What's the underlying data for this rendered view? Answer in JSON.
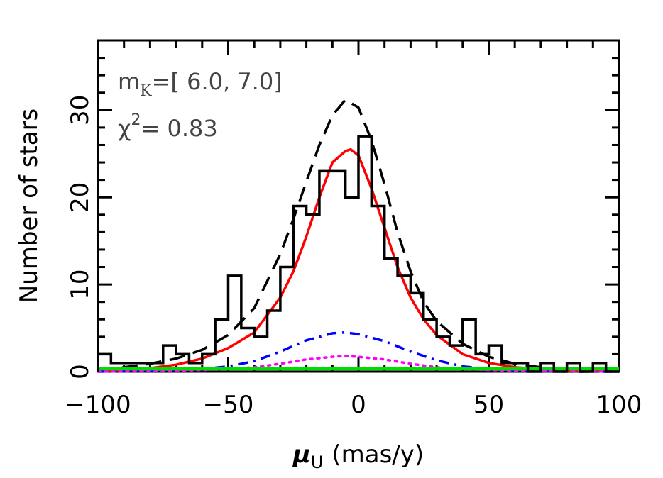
{
  "chart_data": {
    "type": "line",
    "xlabel": "μ",
    "xlabel_sub": "U",
    "xlabel_units": "(mas/y)",
    "ylabel": "Number of stars",
    "xlim": [
      -100,
      100
    ],
    "ylim": [
      0,
      38
    ],
    "x_ticks": [
      -100,
      -50,
      0,
      50,
      100
    ],
    "x_tick_labels": [
      "−100",
      "−50",
      "0",
      "50",
      "100"
    ],
    "y_ticks": [
      0,
      10,
      20,
      30
    ],
    "y_tick_labels": [
      "0",
      "10",
      "20",
      "30"
    ],
    "annotations": {
      "mag_prefix": "m",
      "mag_sub": "K",
      "mag_range": "=[ 6.0, 7.0]",
      "chi_prefix": "χ",
      "chi_sup": "2",
      "chi_value": "= 0.83"
    },
    "grid": false,
    "histogram": {
      "bin_width": 5,
      "edges": [
        -100,
        -95,
        -90,
        -85,
        -80,
        -75,
        -70,
        -65,
        -60,
        -55,
        -50,
        -45,
        -40,
        -35,
        -30,
        -25,
        -20,
        -15,
        -10,
        -5,
        0,
        5,
        10,
        15,
        20,
        25,
        30,
        35,
        40,
        45,
        50,
        55,
        60,
        65,
        70,
        75,
        80,
        85,
        90,
        95,
        100
      ],
      "counts": [
        2,
        1,
        1,
        1,
        1,
        3,
        2,
        1,
        2,
        6,
        11,
        5,
        4,
        7,
        12,
        19,
        18,
        23,
        23,
        20,
        27,
        19,
        13,
        11,
        9,
        6,
        4,
        3,
        6,
        2,
        3,
        1,
        1,
        0,
        1,
        0,
        1,
        0,
        1,
        0
      ]
    },
    "series": [
      {
        "style": "dashed",
        "color": "#000000",
        "x": [
          -100,
          -90,
          -80,
          -70,
          -60,
          -50,
          -40,
          -30,
          -25,
          -20,
          -15,
          -10,
          -5,
          0,
          5,
          10,
          15,
          20,
          25,
          30,
          40,
          50,
          60,
          70,
          80,
          90,
          100
        ],
        "y": [
          0.2,
          0.5,
          0.9,
          1.5,
          2.5,
          4.2,
          7.3,
          13.5,
          17.5,
          21.8,
          26.0,
          29.4,
          31.2,
          30.3,
          26.5,
          21.5,
          16.0,
          11.5,
          8.0,
          5.8,
          3.2,
          1.7,
          0.9,
          0.5,
          0.3,
          0.2,
          0.1
        ]
      },
      {
        "style": "solid",
        "color": "#ff0000",
        "x": [
          -100,
          -90,
          -80,
          -70,
          -60,
          -50,
          -40,
          -30,
          -25,
          -20,
          -15,
          -10,
          -5,
          -3,
          0,
          5,
          10,
          15,
          20,
          25,
          30,
          40,
          50,
          60,
          70,
          80,
          90,
          100
        ],
        "y": [
          0.1,
          0.2,
          0.4,
          0.8,
          1.5,
          2.7,
          4.5,
          8.5,
          11.5,
          15.5,
          20.0,
          24.0,
          25.3,
          25.5,
          24.8,
          21.0,
          16.5,
          12.0,
          8.5,
          6.0,
          4.2,
          2.0,
          1.0,
          0.5,
          0.3,
          0.1,
          0.1,
          0.0
        ]
      },
      {
        "style": "dash-dot",
        "color": "#0000ff",
        "x": [
          -100,
          -80,
          -60,
          -50,
          -40,
          -30,
          -20,
          -10,
          -5,
          0,
          10,
          20,
          30,
          40,
          50,
          60,
          80,
          100
        ],
        "y": [
          0.0,
          0.1,
          0.3,
          0.6,
          1.2,
          2.3,
          3.6,
          4.4,
          4.5,
          4.3,
          3.5,
          2.3,
          1.3,
          0.6,
          0.3,
          0.1,
          0.0,
          0.0
        ]
      },
      {
        "style": "dotted",
        "color": "#ff00ff",
        "x": [
          -100,
          -70,
          -50,
          -40,
          -30,
          -20,
          -10,
          -5,
          0,
          10,
          20,
          30,
          40,
          60,
          100
        ],
        "y": [
          0.0,
          0.1,
          0.3,
          0.5,
          0.9,
          1.4,
          1.7,
          1.8,
          1.7,
          1.4,
          0.9,
          0.5,
          0.3,
          0.1,
          0.0
        ]
      },
      {
        "style": "solid",
        "color": "#00dd00",
        "x": [
          -100,
          100
        ],
        "y": [
          0.35,
          0.35
        ]
      }
    ]
  }
}
